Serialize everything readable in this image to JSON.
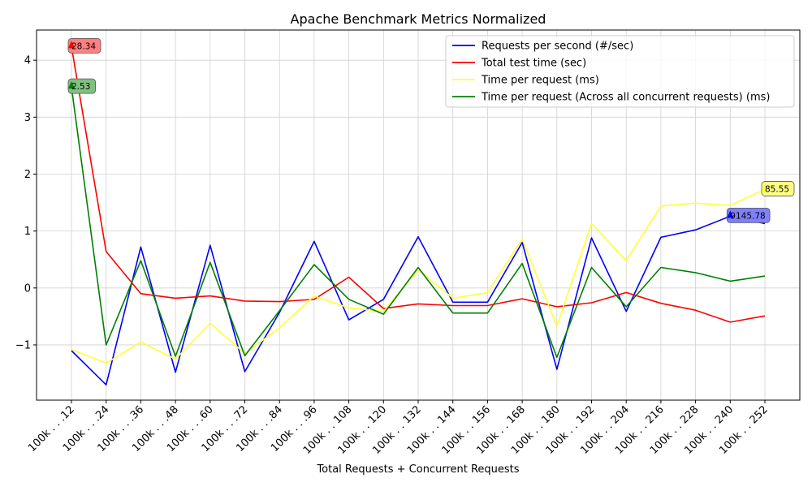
{
  "chart_data": {
    "type": "line",
    "title": "Apache Benchmark Metrics Normalized",
    "xlabel": "Total Requests + Concurrent Requests",
    "ylabel": "",
    "categories": [
      "100k . . .12",
      "100k . . .24",
      "100k . . .36",
      "100k . . .48",
      "100k . . .60",
      "100k . . .72",
      "100k . . .84",
      "100k . . .96",
      "100k . . 108",
      "100k . . 120",
      "100k . . 132",
      "100k . . 144",
      "100k . . 156",
      "100k . . 168",
      "100k . . 180",
      "100k . . 192",
      "100k . . 204",
      "100k . . 216",
      "100k . . 228",
      "100k . . 240",
      "100k . . 252"
    ],
    "yticks": [
      -1,
      0,
      1,
      2,
      3,
      4
    ],
    "ytick_labels": [
      "−1",
      "0",
      "1",
      "2",
      "3",
      "4"
    ],
    "ylim": [
      -1.97,
      4.53
    ],
    "grid": true,
    "legend_position": "top-right",
    "series": [
      {
        "name": "Requests per second (#/sec)",
        "color": "#0000ff",
        "values": [
          -1.1,
          -1.7,
          0.72,
          -1.48,
          0.75,
          -1.47,
          -0.43,
          0.82,
          -0.56,
          -0.2,
          0.9,
          -0.25,
          -0.25,
          0.8,
          -1.43,
          0.88,
          -0.41,
          0.89,
          1.02,
          1.26,
          1.13
        ]
      },
      {
        "name": "Total test time (sec)",
        "color": "#ff0000",
        "values": [
          4.24,
          0.64,
          -0.1,
          -0.18,
          -0.14,
          -0.23,
          -0.24,
          -0.2,
          0.19,
          -0.36,
          -0.28,
          -0.31,
          -0.31,
          -0.19,
          -0.33,
          -0.26,
          -0.08,
          -0.27,
          -0.39,
          -0.6,
          -0.49
        ]
      },
      {
        "name": "Time per request (ms)",
        "color": "#ffff33",
        "values": [
          -1.08,
          -1.32,
          -0.95,
          -1.25,
          -0.62,
          -1.15,
          -0.7,
          -0.14,
          -0.35,
          -0.41,
          0.32,
          -0.18,
          -0.08,
          0.86,
          -0.67,
          1.13,
          0.48,
          1.44,
          1.49,
          1.45,
          1.73
        ]
      },
      {
        "name": "Time per request (Across all concurrent requests) (ms)",
        "color": "#008000",
        "values": [
          3.53,
          -1.0,
          0.48,
          -1.2,
          0.45,
          -1.19,
          -0.4,
          0.41,
          -0.2,
          -0.46,
          0.36,
          -0.44,
          -0.44,
          0.43,
          -1.22,
          0.36,
          -0.33,
          0.36,
          0.27,
          0.12,
          0.21
        ]
      }
    ],
    "annotations": [
      {
        "text": "28.34",
        "series": 1,
        "index": 0,
        "color": "#ff0000",
        "box_color": "#ff8080"
      },
      {
        "text": "2.53",
        "series": 3,
        "index": 0,
        "color": "#008000",
        "box_color": "#80c080"
      },
      {
        "text": "85.55",
        "series": 2,
        "index": 20,
        "color": "#ffff33",
        "box_color": "#ffff80"
      },
      {
        "text": "9145.78",
        "series": 0,
        "index": 19,
        "color": "#0000ff",
        "box_color": "#8080ff"
      }
    ]
  }
}
